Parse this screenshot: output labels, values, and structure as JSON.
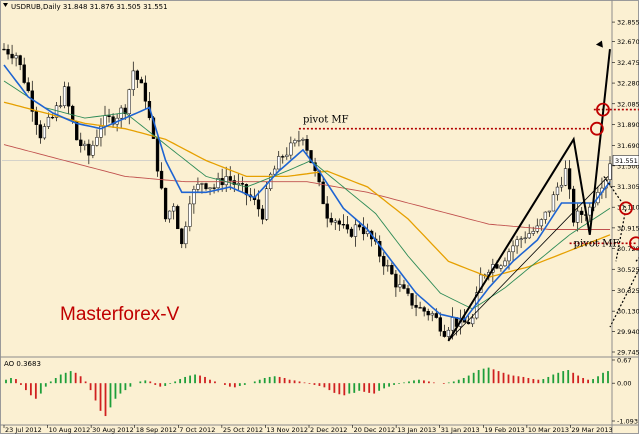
{
  "chart_data": {
    "type": "candlestick",
    "symbol_header": "USDRUB,Daily  31.848 31.876 31.505 31.551",
    "watermark": "Masterforex-V",
    "last_price_label": "31.551",
    "y_ticks": [
      "32.855",
      "32.670",
      "32.475",
      "32.280",
      "32.085",
      "31.890",
      "31.690",
      "31.500",
      "31.305",
      "31.110",
      "30.915",
      "30.720",
      "30.525",
      "30.325",
      "30.130",
      "29.940",
      "29.745"
    ],
    "x_ticks": [
      "23 Jul 2012",
      "10 Aug 2012",
      "30 Aug 2012",
      "18 Sep 2012",
      "7 Oct 2012",
      "25 Oct 2012",
      "13 Nov 2012",
      "2 Dec 2012",
      "20 Dec 2012",
      "13 Jan 2013",
      "31 Jan 2013",
      "19 Feb 2013",
      "10 Mar 2013",
      "29 Mar 2013"
    ],
    "ylim": [
      29.745,
      32.95
    ],
    "annotations": {
      "pivot_top": "pivot MF",
      "pivot_bottom": "pivot MF",
      "target": "31.97"
    },
    "price_path": [
      [
        0,
        32.6
      ],
      [
        3,
        32.55
      ],
      [
        6,
        32.2
      ],
      [
        9,
        31.8
      ],
      [
        12,
        31.95
      ],
      [
        15,
        32.2
      ],
      [
        18,
        31.75
      ],
      [
        21,
        31.6
      ],
      [
        24,
        31.9
      ],
      [
        27,
        31.95
      ],
      [
        30,
        32.05
      ],
      [
        32,
        32.4
      ],
      [
        35,
        32.15
      ],
      [
        38,
        31.5
      ],
      [
        40,
        31.0
      ],
      [
        42,
        31.15
      ],
      [
        44,
        30.75
      ],
      [
        46,
        31.2
      ],
      [
        49,
        31.35
      ],
      [
        52,
        31.3
      ],
      [
        55,
        31.4
      ],
      [
        58,
        31.3
      ],
      [
        61,
        31.2
      ],
      [
        64,
        31.05
      ],
      [
        66,
        31.4
      ],
      [
        69,
        31.6
      ],
      [
        72,
        31.7
      ],
      [
        74,
        31.8
      ],
      [
        76,
        31.55
      ],
      [
        78,
        31.3
      ],
      [
        80,
        31.05
      ],
      [
        82,
        31.0
      ],
      [
        85,
        30.85
      ],
      [
        88,
        30.95
      ],
      [
        91,
        30.8
      ],
      [
        94,
        30.6
      ],
      [
        97,
        30.4
      ],
      [
        100,
        30.25
      ],
      [
        103,
        30.15
      ],
      [
        106,
        30.1
      ],
      [
        109,
        29.95
      ],
      [
        111,
        30.05
      ],
      [
        113,
        30.0
      ],
      [
        116,
        30.05
      ],
      [
        118,
        30.45
      ],
      [
        120,
        30.55
      ],
      [
        123,
        30.6
      ],
      [
        126,
        30.75
      ],
      [
        129,
        30.85
      ],
      [
        132,
        30.9
      ],
      [
        135,
        31.1
      ],
      [
        137,
        31.3
      ],
      [
        139,
        31.45
      ],
      [
        141,
        31.0
      ],
      [
        143,
        31.05
      ],
      [
        145,
        31.1
      ],
      [
        147,
        31.3
      ],
      [
        149,
        31.4
      ],
      [
        150,
        31.55
      ]
    ],
    "ma_fast": [
      [
        0,
        32.45
      ],
      [
        6,
        32.15
      ],
      [
        12,
        32.0
      ],
      [
        18,
        31.9
      ],
      [
        24,
        31.85
      ],
      [
        30,
        31.95
      ],
      [
        36,
        32.05
      ],
      [
        40,
        31.55
      ],
      [
        44,
        31.25
      ],
      [
        50,
        31.25
      ],
      [
        56,
        31.3
      ],
      [
        62,
        31.2
      ],
      [
        68,
        31.45
      ],
      [
        74,
        31.65
      ],
      [
        78,
        31.45
      ],
      [
        84,
        31.1
      ],
      [
        90,
        30.9
      ],
      [
        96,
        30.6
      ],
      [
        102,
        30.3
      ],
      [
        108,
        30.1
      ],
      [
        114,
        30.05
      ],
      [
        120,
        30.35
      ],
      [
        126,
        30.6
      ],
      [
        132,
        30.8
      ],
      [
        138,
        31.15
      ],
      [
        142,
        31.15
      ],
      [
        146,
        31.15
      ],
      [
        150,
        31.35
      ]
    ],
    "ma_mid": [
      [
        0,
        32.3
      ],
      [
        10,
        32.05
      ],
      [
        20,
        31.95
      ],
      [
        30,
        32.0
      ],
      [
        40,
        31.7
      ],
      [
        50,
        31.4
      ],
      [
        60,
        31.3
      ],
      [
        70,
        31.45
      ],
      [
        76,
        31.55
      ],
      [
        84,
        31.3
      ],
      [
        92,
        31.05
      ],
      [
        100,
        30.65
      ],
      [
        108,
        30.3
      ],
      [
        116,
        30.15
      ],
      [
        124,
        30.35
      ],
      [
        132,
        30.6
      ],
      [
        140,
        30.85
      ],
      [
        150,
        31.1
      ]
    ],
    "ma_slow": [
      [
        0,
        32.1
      ],
      [
        10,
        32.0
      ],
      [
        20,
        31.9
      ],
      [
        30,
        31.85
      ],
      [
        40,
        31.75
      ],
      [
        50,
        31.55
      ],
      [
        60,
        31.4
      ],
      [
        70,
        31.4
      ],
      [
        80,
        31.45
      ],
      [
        90,
        31.3
      ],
      [
        100,
        31.0
      ],
      [
        110,
        30.6
      ],
      [
        120,
        30.45
      ],
      [
        130,
        30.55
      ],
      [
        140,
        30.7
      ],
      [
        150,
        30.85
      ]
    ],
    "ma_long": [
      [
        0,
        31.7
      ],
      [
        15,
        31.55
      ],
      [
        30,
        31.4
      ],
      [
        45,
        31.35
      ],
      [
        60,
        31.35
      ],
      [
        75,
        31.35
      ],
      [
        90,
        31.25
      ],
      [
        105,
        31.1
      ],
      [
        120,
        30.95
      ],
      [
        135,
        30.9
      ],
      [
        150,
        30.9
      ]
    ],
    "indicator": {
      "label": "AO 0.3683",
      "y_ticks": [
        "0.67",
        "0.00",
        "-1.093"
      ],
      "ylim": [
        -1.093,
        0.67
      ],
      "values": [
        0.1,
        0.15,
        0.12,
        -0.05,
        -0.2,
        -0.35,
        -0.45,
        -0.3,
        -0.1,
        0.05,
        0.15,
        0.25,
        0.3,
        0.35,
        0.3,
        0.2,
        0.05,
        -0.2,
        -0.5,
        -0.8,
        -0.95,
        -0.7,
        -0.45,
        -0.3,
        -0.2,
        -0.1,
        0.0,
        0.05,
        0.08,
        0.05,
        -0.05,
        -0.1,
        -0.08,
        -0.02,
        0.05,
        0.12,
        0.18,
        0.22,
        0.25,
        0.22,
        0.18,
        0.1,
        0.05,
        0.0,
        -0.05,
        -0.1,
        -0.12,
        -0.08,
        -0.05,
        0.0,
        0.05,
        0.1,
        0.15,
        0.18,
        0.2,
        0.18,
        0.15,
        0.1,
        0.08,
        0.05,
        0.02,
        -0.02,
        -0.05,
        -0.08,
        -0.12,
        -0.2,
        -0.28,
        -0.32,
        -0.35,
        -0.3,
        -0.28,
        -0.22,
        -0.25,
        -0.28,
        -0.3,
        -0.22,
        -0.15,
        -0.1,
        -0.05,
        -0.02,
        0.02,
        0.05,
        0.08,
        0.1,
        0.08,
        0.05,
        0.02,
        0.0,
        -0.02,
        0.02,
        0.05,
        0.1,
        0.15,
        0.22,
        0.3,
        0.38,
        0.42,
        0.45,
        0.4,
        0.35,
        0.3,
        0.25,
        0.22,
        0.2,
        0.18,
        0.15,
        0.12,
        0.1,
        0.12,
        0.18,
        0.25,
        0.3,
        0.35,
        0.38,
        0.3,
        0.22,
        0.15,
        0.1,
        0.12,
        0.2,
        0.3,
        0.35
      ]
    }
  }
}
